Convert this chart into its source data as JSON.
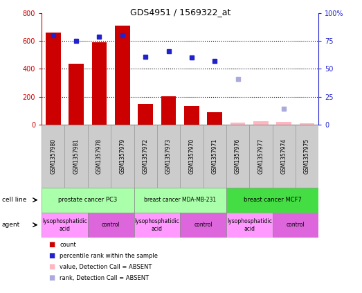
{
  "title": "GDS4951 / 1569322_at",
  "samples": [
    "GSM1357980",
    "GSM1357981",
    "GSM1357978",
    "GSM1357979",
    "GSM1357972",
    "GSM1357973",
    "GSM1357970",
    "GSM1357971",
    "GSM1357976",
    "GSM1357977",
    "GSM1357974",
    "GSM1357975"
  ],
  "count_present": [
    660,
    435,
    590,
    710,
    150,
    205,
    135,
    90,
    null,
    null,
    null,
    null
  ],
  "count_absent": [
    null,
    null,
    null,
    null,
    null,
    null,
    null,
    null,
    12,
    22,
    18,
    8
  ],
  "pct_present": [
    80,
    75,
    79,
    80,
    61,
    66,
    60,
    57,
    null,
    null,
    null,
    null
  ],
  "pct_absent": [
    null,
    null,
    null,
    null,
    null,
    null,
    null,
    null,
    41,
    null,
    14,
    null
  ],
  "ylim_left": [
    0,
    800
  ],
  "ylim_right": [
    0,
    100
  ],
  "yticks_left": [
    0,
    200,
    400,
    600,
    800
  ],
  "ytick_labels_left": [
    "0",
    "200",
    "400",
    "600",
    "800"
  ],
  "yticks_right": [
    0,
    25,
    50,
    75,
    100
  ],
  "ytick_labels_right": [
    "0",
    "25",
    "50",
    "75",
    "100%"
  ],
  "bar_color": "#CC0000",
  "bar_absent_color": "#FFB6C1",
  "dot_color": "#2222CC",
  "dot_absent_color": "#AAAADD",
  "left_axis_color": "#CC0000",
  "right_axis_color": "#2222CC",
  "cell_line_light_green": "#AAFFAA",
  "cell_line_dark_green": "#44DD44",
  "agent_purple": "#DD66DD",
  "agent_pink": "#FF99FF",
  "sample_bg": "#CCCCCC",
  "cell_line_groups": [
    {
      "label": "prostate cancer PC3",
      "start": 0,
      "end": 3
    },
    {
      "label": "breast cancer MDA-MB-231",
      "start": 4,
      "end": 7
    },
    {
      "label": "breast cancer MCF7",
      "start": 8,
      "end": 11
    }
  ],
  "agent_groups": [
    {
      "label": "lysophosphatidic\nacid",
      "start": 0,
      "end": 1,
      "type": "lpa"
    },
    {
      "label": "control",
      "start": 2,
      "end": 3,
      "type": "ctrl"
    },
    {
      "label": "lysophosphatidic\nacid",
      "start": 4,
      "end": 5,
      "type": "lpa"
    },
    {
      "label": "control",
      "start": 6,
      "end": 7,
      "type": "ctrl"
    },
    {
      "label": "lysophosphatidic\nacid",
      "start": 8,
      "end": 9,
      "type": "lpa"
    },
    {
      "label": "control",
      "start": 10,
      "end": 11,
      "type": "ctrl"
    }
  ]
}
